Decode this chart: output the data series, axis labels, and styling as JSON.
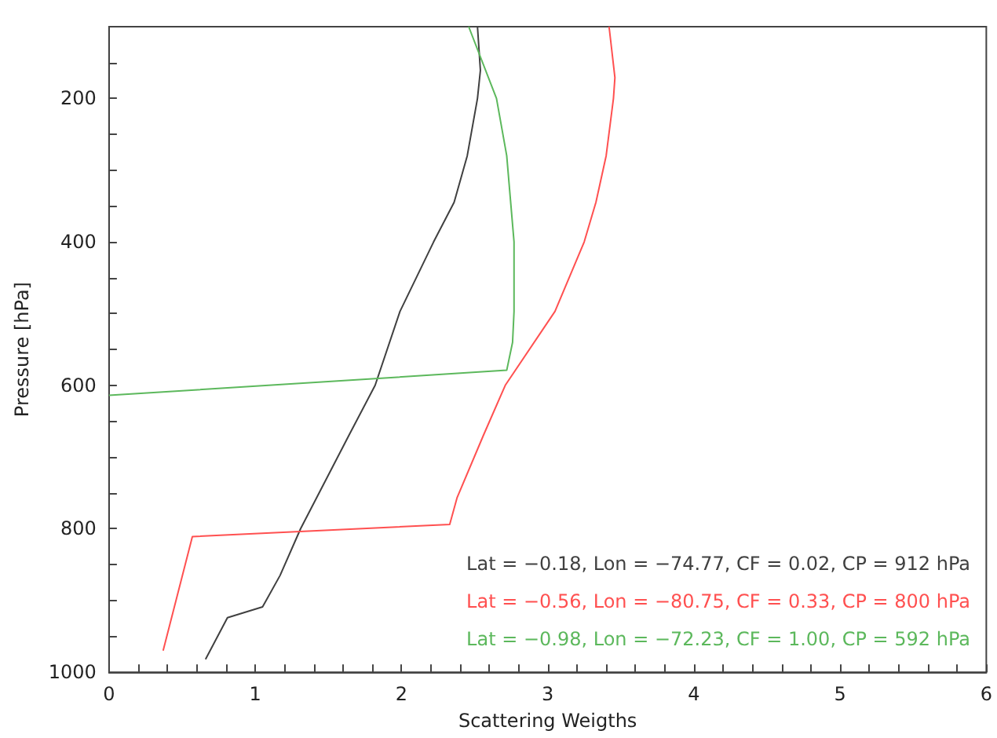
{
  "chart_data": {
    "type": "line",
    "xlabel": "Scattering Weigths",
    "ylabel": "Pressure [hPa]",
    "xlim": [
      0,
      6
    ],
    "ylim": [
      1000,
      100
    ],
    "xticks": [
      0,
      {
        "value": 0.2,
        "label": null
      },
      {
        "value": 0.4,
        "label": null
      },
      {
        "value": 0.6,
        "label": null
      },
      {
        "value": 0.8,
        "label": null
      },
      1,
      {
        "value": 1.2,
        "label": null
      },
      {
        "value": 1.4,
        "label": null
      },
      {
        "value": 1.6,
        "label": null
      },
      {
        "value": 1.8,
        "label": null
      },
      2,
      {
        "value": 2.2,
        "label": null
      },
      {
        "value": 2.4,
        "label": null
      },
      {
        "value": 2.6,
        "label": null
      },
      {
        "value": 2.8,
        "label": null
      },
      3,
      {
        "value": 3.2,
        "label": null
      },
      {
        "value": 3.4,
        "label": null
      },
      {
        "value": 3.6,
        "label": null
      },
      {
        "value": 3.8,
        "label": null
      },
      4,
      {
        "value": 4.2,
        "label": null
      },
      {
        "value": 4.4,
        "label": null
      },
      {
        "value": 4.6,
        "label": null
      },
      {
        "value": 4.8,
        "label": null
      },
      5,
      {
        "value": 5.2,
        "label": null
      },
      {
        "value": 5.4,
        "label": null
      },
      {
        "value": 5.6,
        "label": null
      },
      {
        "value": 5.8,
        "label": null
      },
      6
    ],
    "yticks": [
      {
        "value": 150,
        "label": null
      },
      200,
      {
        "value": 250,
        "label": null
      },
      {
        "value": 300,
        "label": null
      },
      {
        "value": 350,
        "label": null
      },
      400,
      {
        "value": 450,
        "label": null
      },
      {
        "value": 500,
        "label": null
      },
      {
        "value": 550,
        "label": null
      },
      600,
      {
        "value": 650,
        "label": null
      },
      {
        "value": 700,
        "label": null
      },
      {
        "value": 750,
        "label": null
      },
      800,
      {
        "value": 850,
        "label": null
      },
      {
        "value": 900,
        "label": null
      },
      {
        "value": 950,
        "label": null
      },
      1000
    ],
    "grid": false,
    "legend": "bottom right",
    "marker": "none",
    "line_style": "solid",
    "series": [
      {
        "name": "Lat = −0.18, Lon = −74.77, CF = 0.02, CP = 912 hPa",
        "color": "#404040",
        "x": [
          2.52,
          2.54,
          2.52,
          2.45,
          2.36,
          2.22,
          1.99,
          1.82,
          1.64,
          1.31,
          1.17,
          1.05,
          0.81,
          0.66
        ],
        "values": [
          100,
          161,
          200,
          280,
          345,
          400,
          497,
          600,
          670,
          800,
          865,
          909,
          924,
          982
        ]
      },
      {
        "name": "Lat = −0.56, Lon = −80.75, CF = 0.33, CP = 800 hPa",
        "color": "#ff5050",
        "x": [
          3.42,
          3.46,
          3.45,
          3.4,
          3.33,
          3.25,
          3.05,
          2.71,
          2.56,
          2.38,
          2.33,
          0.57,
          0.37
        ],
        "values": [
          100,
          171,
          200,
          280,
          345,
          400,
          497,
          600,
          670,
          757,
          794,
          811,
          970
        ]
      },
      {
        "name": "Lat = −0.98, Lon = −72.23, CF = 1.00, CP = 592 hPa",
        "color": "#5cb85c",
        "x": [
          2.46,
          2.65,
          2.72,
          2.77,
          2.77,
          2.76,
          2.72,
          0
        ],
        "values": [
          100,
          200,
          280,
          400,
          497,
          540,
          579,
          614
        ]
      }
    ]
  }
}
